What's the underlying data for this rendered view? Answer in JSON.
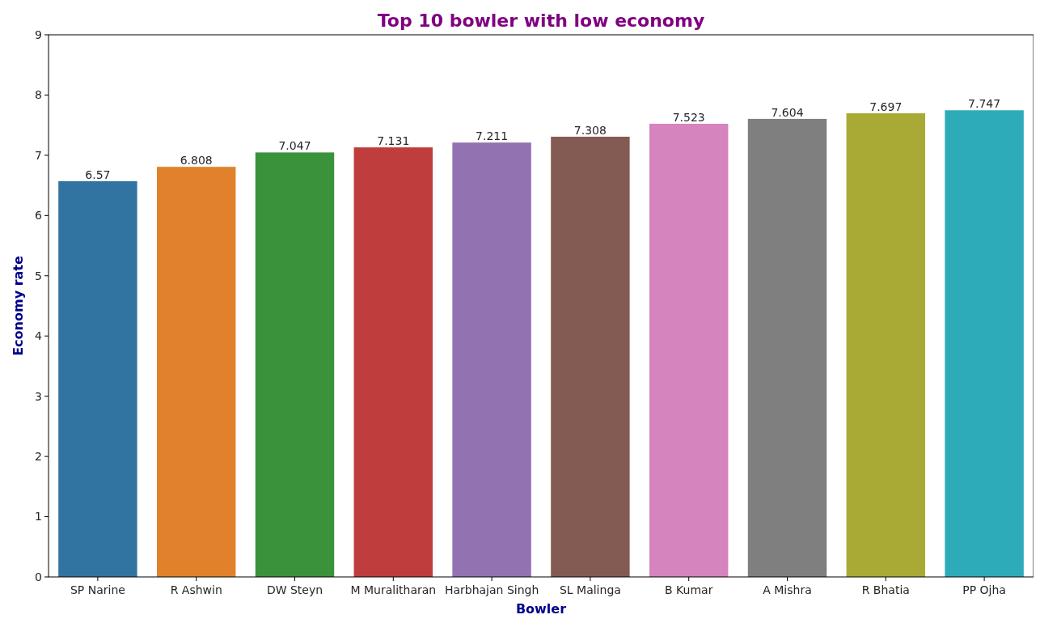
{
  "chart_data": {
    "type": "bar",
    "title": "Top 10 bowler with low economy",
    "xlabel": "Bowler",
    "ylabel": "Economy rate",
    "categories": [
      "SP Narine",
      "R Ashwin",
      "DW Steyn",
      "M Muralitharan",
      "Harbhajan Singh",
      "SL Malinga",
      "B Kumar",
      "A Mishra",
      "R Bhatia",
      "PP Ojha"
    ],
    "values": [
      6.57,
      6.808,
      7.047,
      7.131,
      7.211,
      7.308,
      7.523,
      7.604,
      7.697,
      7.747
    ],
    "colors": [
      "#3274a1",
      "#e1812c",
      "#3a923a",
      "#c03d3e",
      "#9372b2",
      "#845b53",
      "#d684bd",
      "#7f7f7f",
      "#a9aa35",
      "#2eabb8"
    ],
    "ylim": [
      0,
      9
    ],
    "yticks": [
      0,
      1,
      2,
      3,
      4,
      5,
      6,
      7,
      8,
      9
    ],
    "data_labels": true,
    "grid": false
  }
}
